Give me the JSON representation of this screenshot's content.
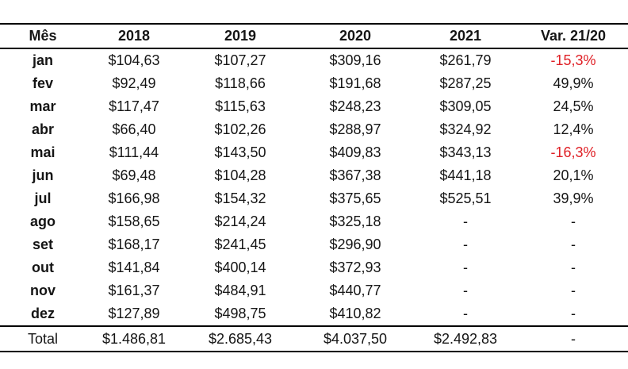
{
  "chart_data": {
    "type": "table",
    "columns": [
      "Mês",
      "2018",
      "2019",
      "2020",
      "2021",
      "Var. 21/20"
    ],
    "rows": [
      [
        "jan",
        "$104,63",
        "$107,27",
        "$309,16",
        "$261,79",
        "-15,3%"
      ],
      [
        "fev",
        "$92,49",
        "$118,66",
        "$191,68",
        "$287,25",
        "49,9%"
      ],
      [
        "mar",
        "$117,47",
        "$115,63",
        "$248,23",
        "$309,05",
        "24,5%"
      ],
      [
        "abr",
        "$66,40",
        "$102,26",
        "$288,97",
        "$324,92",
        "12,4%"
      ],
      [
        "mai",
        "$111,44",
        "$143,50",
        "$409,83",
        "$343,13",
        "-16,3%"
      ],
      [
        "jun",
        "$69,48",
        "$104,28",
        "$367,38",
        "$441,18",
        "20,1%"
      ],
      [
        "jul",
        "$166,98",
        "$154,32",
        "$375,65",
        "$525,51",
        "39,9%"
      ],
      [
        "ago",
        "$158,65",
        "$214,24",
        "$325,18",
        "-",
        "-"
      ],
      [
        "set",
        "$168,17",
        "$241,45",
        "$296,90",
        "-",
        "-"
      ],
      [
        "out",
        "$141,84",
        "$400,14",
        "$372,93",
        "-",
        "-"
      ],
      [
        "nov",
        "$161,37",
        "$484,91",
        "$440,77",
        "-",
        "-"
      ],
      [
        "dez",
        "$127,89",
        "$498,75",
        "$410,82",
        "-",
        "-"
      ]
    ],
    "total_row": [
      "Total",
      "$1.486,81",
      "$2.685,43",
      "$4.037,50",
      "$2.492,83",
      "-"
    ],
    "layout_hints": "negative variation percentages rendered in red; horizontal rules above/below header and total row only"
  },
  "colors": {
    "negative_text": "#df2026",
    "text": "#151515",
    "border": "#000000",
    "background": "#ffffff"
  }
}
